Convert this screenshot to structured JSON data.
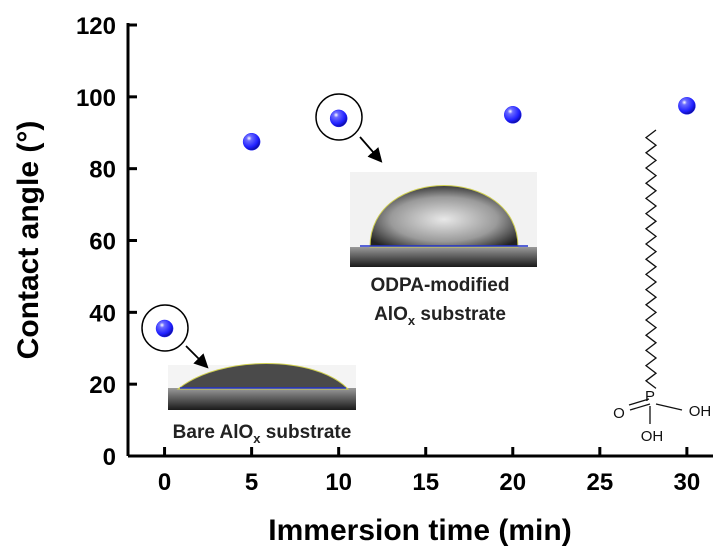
{
  "chart_data": {
    "type": "scatter",
    "x_label": "Immersion time (min)",
    "y_label": "Contact angle (°)",
    "x": [
      0,
      5,
      10,
      20,
      30
    ],
    "values": [
      35.5,
      87.5,
      94,
      95,
      97.5
    ],
    "color": "#1f1fff",
    "xlim": [
      -2.1,
      31.5
    ],
    "xticks": [
      0,
      5,
      10,
      15,
      20,
      25,
      30
    ],
    "ylim": [
      0,
      120
    ],
    "yticks": [
      0,
      20,
      40,
      60,
      80,
      100,
      120
    ],
    "annotations": [
      {
        "line1": "ODPA-modified",
        "text": "AlO",
        "sub": "x",
        "tail": " substrate"
      },
      {
        "text": "Bare AlO",
        "sub": "x",
        "tail": " substrate"
      }
    ],
    "molecule": {
      "oxo": "O",
      "phosphorus": "P",
      "hydroxyl_right": "OH",
      "hydroxyl_bottom": "OH"
    }
  }
}
